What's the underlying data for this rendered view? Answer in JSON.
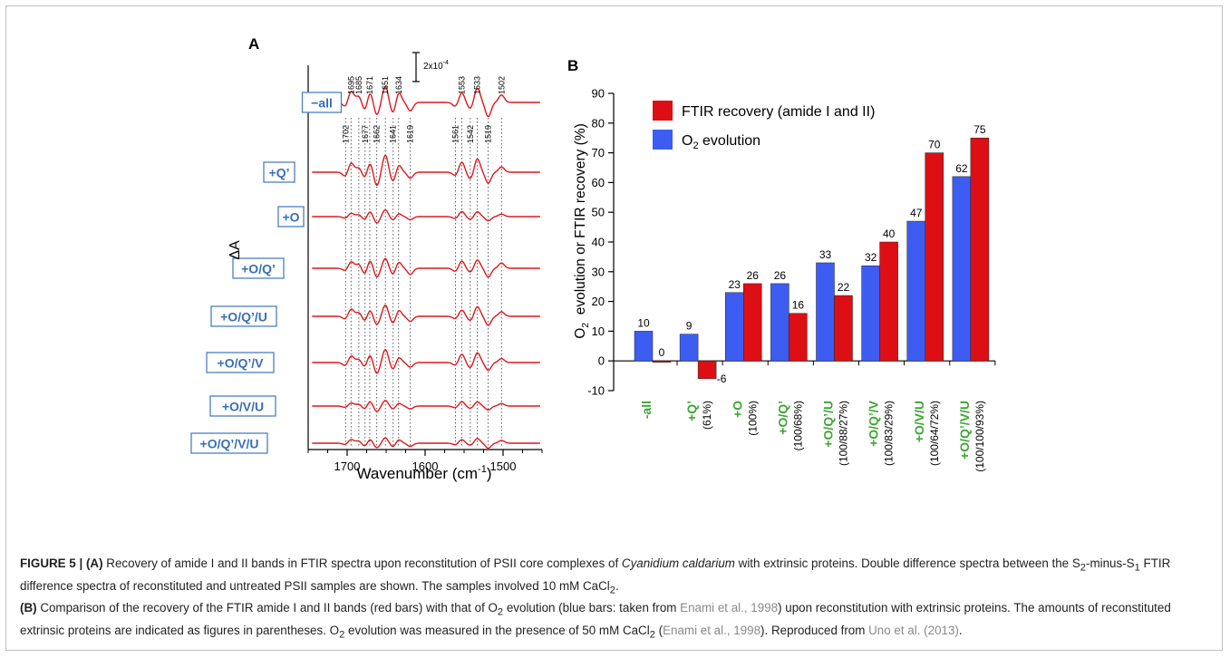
{
  "chart_data": [
    {
      "panel": "A",
      "type": "line",
      "xlabel": "Wavenumber (cm",
      "xlabel_sup": "-1",
      "xlabel_close": ")",
      "ylabel": "ΔA",
      "xlim": [
        1750,
        1450
      ],
      "xticks": [
        1700,
        1600,
        1500
      ],
      "scale_bar": "2x10",
      "scale_bar_exp": "-4",
      "traces": [
        "−all",
        "+Q’",
        "+O",
        "+O/Q’",
        "+O/Q’/U",
        "+O/Q’/V",
        "+O/V/U",
        "+O/Q’/V/U"
      ],
      "peak_labels_top": [
        "1695",
        "1685",
        "1671",
        "1651",
        "1634",
        "1553",
        "1533",
        "1502"
      ],
      "peak_labels_bottom": [
        "1702",
        "1677",
        "1662",
        "1641",
        "1619",
        "1561",
        "1542",
        "1519"
      ],
      "dotted_lines": [
        1702,
        1695,
        1685,
        1677,
        1671,
        1662,
        1651,
        1641,
        1634,
        1619,
        1561,
        1553,
        1542,
        1533,
        1519,
        1502
      ],
      "line_color": "#e0161b",
      "label_border": "#4a7fc1",
      "label_text_color": "#3a6fb4"
    },
    {
      "panel": "B",
      "type": "bar",
      "ylabel_pre": "O",
      "ylabel_sub": "2",
      "ylabel_post": "  evolution or FTIR recovery (%)",
      "ylim": [
        -10,
        90
      ],
      "yticks": [
        -10,
        0,
        10,
        20,
        30,
        40,
        50,
        60,
        70,
        80,
        90
      ],
      "categories": [
        "-all",
        "+Q’",
        "+O",
        "+O/Q’",
        "+O/Q’/U",
        "+O/Q’/V",
        "+O/V/U",
        "+O/Q’/V/U"
      ],
      "subcategories": [
        "",
        "(61%)",
        "(100%)",
        "(100/68%)",
        "(100/88/27%)",
        "(100/83/29%)",
        "(100/64/72%)",
        "(100/100/93%)"
      ],
      "series": [
        {
          "name": "O",
          "name_sub": "2",
          "name_post": " evolution",
          "color": "#3d5df2",
          "values": [
            10,
            9,
            23,
            26,
            33,
            32,
            47,
            62
          ]
        },
        {
          "name": "FTIR recovery (amide I and II)",
          "color": "#dd0f14",
          "values": [
            0,
            -6,
            26,
            16,
            22,
            40,
            70,
            75
          ]
        }
      ],
      "category_color": "#3fa535",
      "legend": "top-left"
    }
  ],
  "panel_labels": {
    "a": "A",
    "b": "B"
  },
  "caption": {
    "fig": "FIGURE 5 | ",
    "a_tag": "(A)",
    "a_text1": " Recovery of amide I and II bands in FTIR spectra upon reconstitution of PSII core complexes of ",
    "a_italic": "Cyanidium caldarium",
    "a_text2": " with extrinsic proteins. Double difference spectra between the S",
    "a_sub1": "2",
    "a_text3": "-minus-S",
    "a_sub2": "1",
    "a_text4": " FTIR difference spectra of reconstituted and untreated PSII samples are shown. The samples involved 10 mM CaCl",
    "a_sub3": "2",
    "a_text5": ".",
    "b_tag": "(B)",
    "b_text1": " Comparison of the recovery of the FTIR amide I and II bands (red bars) with that of O",
    "b_sub1": "2",
    "b_text2": " evolution (blue bars: taken from ",
    "cite1": "Enami et al., 1998",
    "b_text3": ") upon reconstitution with extrinsic proteins. The amounts of reconstituted extrinsic proteins are indicated as figures in parentheses. O",
    "b_sub2": "2",
    "b_text4": " evolution was measured in the presence of 50 mM CaCl",
    "b_sub3": "2",
    "b_text5": " (",
    "cite2": "Enami et al., 1998",
    "b_text6": "). Reproduced from ",
    "cite3": "Uno et al. (2013)",
    "b_text7": "."
  }
}
